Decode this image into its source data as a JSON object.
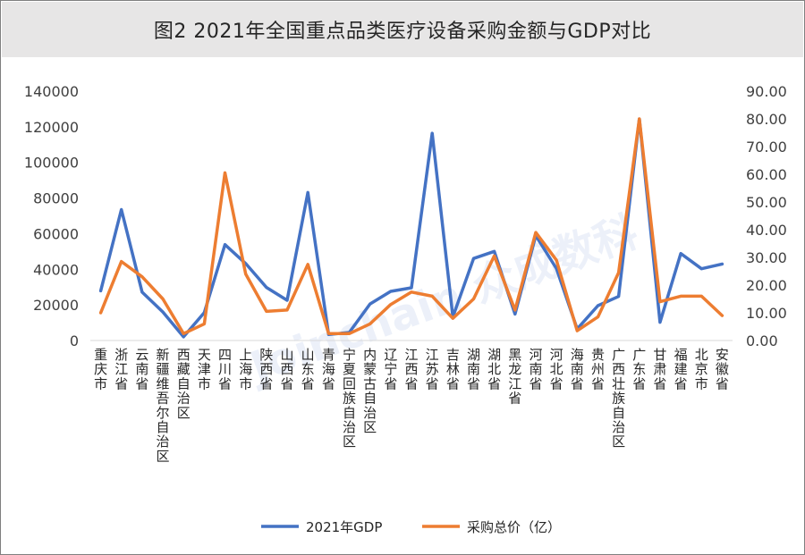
{
  "title": "图2 2021年全国重点品类医疗设备采购金额与GDP对比",
  "watermark": "Joinchain 众成数科",
  "chart_data": {
    "type": "line",
    "categories": [
      "重庆市",
      "浙江省",
      "云南省",
      "新疆维吾尔自治区",
      "西藏自治区",
      "天津市",
      "四川省",
      "上海市",
      "陕西省",
      "山西省",
      "山东省",
      "青海省",
      "宁夏回族自治区",
      "内蒙古自治区",
      "辽宁省",
      "江西省",
      "江苏省",
      "吉林省",
      "湖南省",
      "湖北省",
      "黑龙江省",
      "河南省",
      "河北省",
      "海南省",
      "贵州省",
      "广西壮族自治区",
      "广东省",
      "甘肃省",
      "福建省",
      "北京市",
      "安徽省"
    ],
    "series": [
      {
        "name": "2021年GDP",
        "axis": "left",
        "color": "#4472c4",
        "values": [
          27894,
          73516,
          27147,
          15984,
          2081,
          15695,
          53851,
          43215,
          29801,
          22590,
          83096,
          3347,
          4522,
          20514,
          27584,
          29620,
          116364,
          13236,
          46063,
          50013,
          14859,
          58887,
          40391,
          6475,
          19586,
          24741,
          124370,
          10243,
          48810,
          40270,
          42959
        ]
      },
      {
        "name": "采购总价（亿）",
        "axis": "right",
        "color": "#ed7d31",
        "values": [
          10,
          28.5,
          23,
          15,
          2.5,
          6,
          60.5,
          24,
          10.5,
          11,
          27.5,
          2.5,
          2.5,
          6,
          13,
          17.5,
          16,
          8,
          15,
          30.5,
          11,
          39,
          29,
          3.5,
          8.5,
          24.5,
          80,
          14,
          16,
          16,
          9
        ]
      }
    ],
    "y_left": {
      "min": 0,
      "max": 140000,
      "ticks": [
        "0",
        "20000",
        "40000",
        "60000",
        "80000",
        "100000",
        "120000",
        "140000"
      ]
    },
    "y_right": {
      "min": 0,
      "max": 90,
      "ticks": [
        "0.00",
        "10.00",
        "20.00",
        "30.00",
        "40.00",
        "50.00",
        "60.00",
        "70.00",
        "80.00",
        "90.00"
      ]
    },
    "grid": false,
    "legend_position": "bottom"
  }
}
